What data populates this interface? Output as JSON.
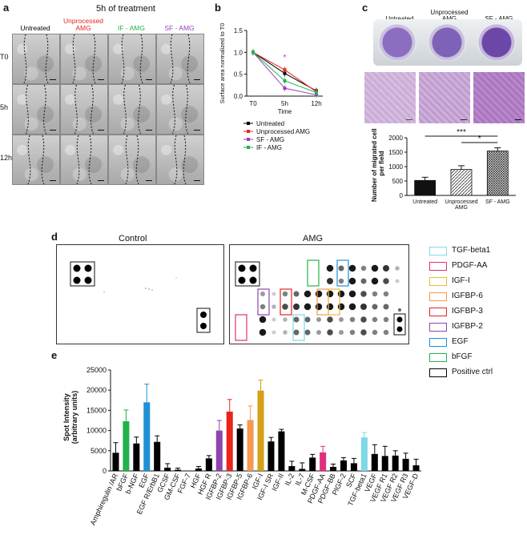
{
  "panel_a": {
    "letter": "a",
    "title": "5h of treatment",
    "columns": [
      {
        "label": "Untreated",
        "color": "#000000"
      },
      {
        "label": "Unprocessed\nAMG",
        "color": "#e8241c"
      },
      {
        "label": "IF - AMG",
        "color": "#22b24c"
      },
      {
        "label": "SF - AMG",
        "color": "#9b3fbf"
      }
    ],
    "rows": [
      "T0",
      "5h",
      "12h"
    ]
  },
  "panel_b": {
    "letter": "b",
    "chart_data": {
      "type": "line",
      "categories": [
        "T0",
        "5h",
        "12h"
      ],
      "xlabel": "Time",
      "ylabel": "Surface area normalized to T0",
      "ylim": [
        0,
        1.5
      ],
      "yticks": [
        "0.0",
        "0.5",
        "1.0",
        "1.5"
      ],
      "series": [
        {
          "name": "Untreated",
          "color": "#000000",
          "values": [
            1.0,
            0.52,
            0.12
          ]
        },
        {
          "name": "Unprocessed AMG",
          "color": "#e8241c",
          "values": [
            1.0,
            0.6,
            0.1
          ]
        },
        {
          "name": "SF - AMG",
          "color": "#9b3fbf",
          "values": [
            1.0,
            0.18,
            0.03
          ]
        },
        {
          "name": "IF - AMG",
          "color": "#22b24c",
          "values": [
            1.0,
            0.35,
            0.08
          ]
        }
      ],
      "annotations": [
        "*"
      ]
    }
  },
  "panel_c": {
    "letter": "c",
    "plate_labels": [
      "Untreated",
      "Unprocessed\nAMG",
      "SF - AMG"
    ],
    "chart_data": {
      "type": "bar",
      "categories": [
        "Untreated",
        "Unprocessed\nAMG",
        "SF - AMG"
      ],
      "values": [
        520,
        900,
        1540
      ],
      "errors": [
        110,
        130,
        110
      ],
      "ylabel": "Number of migrated cells\nper field",
      "ylim": [
        0,
        2000
      ],
      "yticks": [
        "0",
        "500",
        "1000",
        "1500",
        "2000"
      ],
      "significance": [
        "***",
        "*"
      ]
    }
  },
  "panel_d": {
    "letter": "d",
    "titles": [
      "Control",
      "AMG"
    ],
    "legend": [
      {
        "label": "TGF-beta1",
        "color": "#7fd8e6"
      },
      {
        "label": "PDGF-AA",
        "color": "#e0307a"
      },
      {
        "label": "IGF-I",
        "color": "#f1b733"
      },
      {
        "label": "IGFBP-6",
        "color": "#f49a52"
      },
      {
        "label": "IGFBP-3",
        "color": "#e8241c"
      },
      {
        "label": "IGFBP-2",
        "color": "#8e44ad"
      },
      {
        "label": "EGF",
        "color": "#1e90d6"
      },
      {
        "label": "bFGF",
        "color": "#22b24c"
      },
      {
        "label": "Positive ctrl",
        "color": "#000000"
      }
    ]
  },
  "panel_e": {
    "letter": "e",
    "chart_data": {
      "type": "bar",
      "ylabel": "Spot Intensity\n(arbitrary units)",
      "ylim": [
        0,
        25000
      ],
      "yticks": [
        "0",
        "5000",
        "10000",
        "15000",
        "20000",
        "25000"
      ],
      "categories": [
        "Amphiregulin /AR",
        "bFGF",
        "b-NGF",
        "EGF",
        "EGF R/ErbB1",
        "GCSF",
        "GM-CSF",
        "FGF-7",
        "HGF",
        "HGF R",
        "IGFBP-2",
        "IGFBP-3",
        "IGFBP-5",
        "IGFBP-6",
        "IGF-I",
        "IGF-I SR",
        "IGF-II",
        "IL-2",
        "IL-7",
        "M-CSF",
        "PDGF-AA",
        "PDGF-BB",
        "PlGF-2",
        "SCF",
        "TGF-beta1",
        "VEGF",
        "VEGF R1",
        "VEGF R2",
        "VEGF R3",
        "VEGF-D"
      ],
      "values": [
        4500,
        12300,
        6800,
        17000,
        7200,
        800,
        300,
        0,
        600,
        3100,
        10000,
        14700,
        10500,
        12600,
        19900,
        7300,
        9800,
        1200,
        500,
        3300,
        4600,
        1000,
        2600,
        1900,
        8300,
        4200,
        3700,
        3800,
        3000,
        1400
      ],
      "errors": [
        2500,
        2800,
        1600,
        4500,
        1500,
        1000,
        400,
        0,
        500,
        700,
        2500,
        3000,
        900,
        3500,
        2600,
        1000,
        500,
        1200,
        1500,
        800,
        1500,
        700,
        700,
        1200,
        1200,
        2300,
        2400,
        1200,
        1400,
        1500
      ],
      "colors": [
        "#000000",
        "#22b24c",
        "#000000",
        "#1e90d6",
        "#000000",
        "#000000",
        "#000000",
        "#000000",
        "#000000",
        "#000000",
        "#8e44ad",
        "#e8241c",
        "#000000",
        "#f49a52",
        "#d4a017",
        "#000000",
        "#000000",
        "#000000",
        "#000000",
        "#000000",
        "#e0307a",
        "#000000",
        "#000000",
        "#000000",
        "#7fd8e6",
        "#000000",
        "#000000",
        "#000000",
        "#000000",
        "#000000"
      ]
    }
  }
}
